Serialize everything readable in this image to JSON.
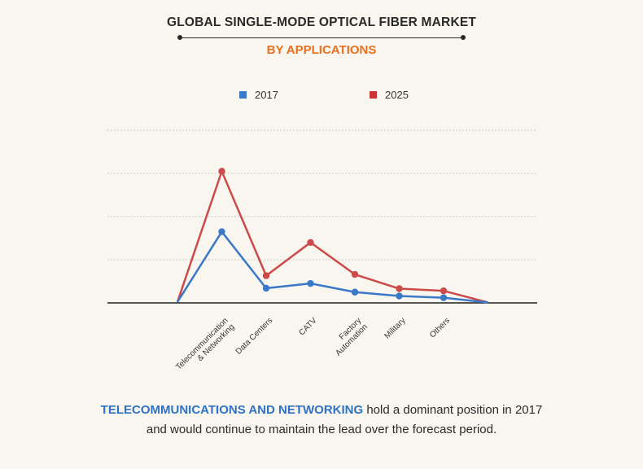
{
  "title": "GLOBAL SINGLE-MODE OPTICAL FIBER MARKET",
  "subtitle": "BY APPLICATIONS",
  "caption": {
    "highlight": "TELECOMMUNICATIONS AND NETWORKING",
    "line1_rest": " hold a dominant position in 2017",
    "line2": "and would continue to maintain the lead over the forecast period."
  },
  "colors": {
    "series_2017": "#3a78c8",
    "series_2025": "#cc4a4a",
    "title": "#2a2a2a",
    "subtitle": "#e8701f",
    "highlight": "#2f72c4"
  },
  "chart_data": {
    "type": "line",
    "title": "GLOBAL SINGLE-MODE OPTICAL FIBER MARKET",
    "subtitle": "BY APPLICATIONS",
    "categories": [
      "",
      "Telecommunication & Networking",
      "Data Centers",
      "CATV",
      "Factory Automation",
      "Military",
      "Others",
      ""
    ],
    "category_lines": [
      [],
      [
        "Telecommunication",
        "& Networking"
      ],
      [
        "Data Centers"
      ],
      [
        "CATV"
      ],
      [
        "Factory",
        "Automation"
      ],
      [
        "Military"
      ],
      [
        "Others"
      ],
      []
    ],
    "series": [
      {
        "name": "2017",
        "values": [
          0.2,
          16.5,
          3.4,
          4.5,
          2.5,
          1.6,
          1.2,
          0.1
        ],
        "markers": [
          false,
          true,
          true,
          true,
          true,
          true,
          true,
          false
        ]
      },
      {
        "name": "2025",
        "values": [
          0.2,
          30.5,
          6.3,
          14.0,
          6.6,
          3.3,
          2.8,
          0.1
        ],
        "markers": [
          false,
          true,
          true,
          true,
          true,
          true,
          true,
          false
        ]
      }
    ],
    "ylim": [
      0,
      40
    ],
    "gridlines": [
      10,
      20,
      30,
      40
    ],
    "y_tick_labels": false,
    "legend_position": "top-center",
    "xlabel": "",
    "ylabel": ""
  }
}
